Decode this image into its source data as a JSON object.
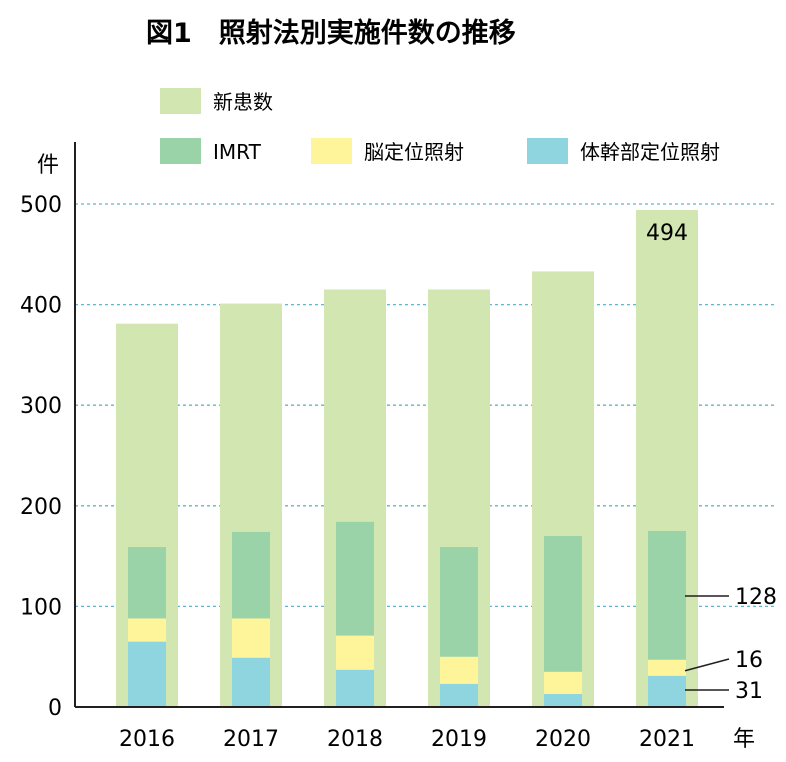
{
  "chart_data": {
    "type": "bar",
    "title": "図1　照射法別実施件数の推移",
    "ylabel": "件",
    "xlabel": "年",
    "ylim": [
      0,
      500
    ],
    "yticks": [
      0,
      100,
      200,
      300,
      400,
      500
    ],
    "grid": "horizontal dashed",
    "legend_position": "top",
    "categories": [
      "2016",
      "2017",
      "2018",
      "2019",
      "2020",
      "2021"
    ],
    "total_series": {
      "name": "新患数",
      "color": "#d1e6b0",
      "values": [
        381,
        401,
        415,
        415,
        433,
        494
      ]
    },
    "stacked_series": [
      {
        "name": "体幹部定位照射",
        "color": "#8fd5e0",
        "values": [
          65,
          49,
          37,
          23,
          13,
          31
        ]
      },
      {
        "name": "脳定位照射",
        "color": "#fef59b",
        "values": [
          23,
          39,
          34,
          27,
          22,
          16
        ]
      },
      {
        "name": "IMRT",
        "color": "#9bd3a9",
        "values": [
          71,
          86,
          113,
          109,
          135,
          128
        ]
      }
    ],
    "annotations": [
      {
        "text": "494",
        "category": "2021",
        "series": "新患数"
      },
      {
        "text": "128",
        "category": "2021",
        "series": "IMRT"
      },
      {
        "text": "16",
        "category": "2021",
        "series": "脳定位照射"
      },
      {
        "text": "31",
        "category": "2021",
        "series": "体幹部定位照射"
      }
    ]
  }
}
